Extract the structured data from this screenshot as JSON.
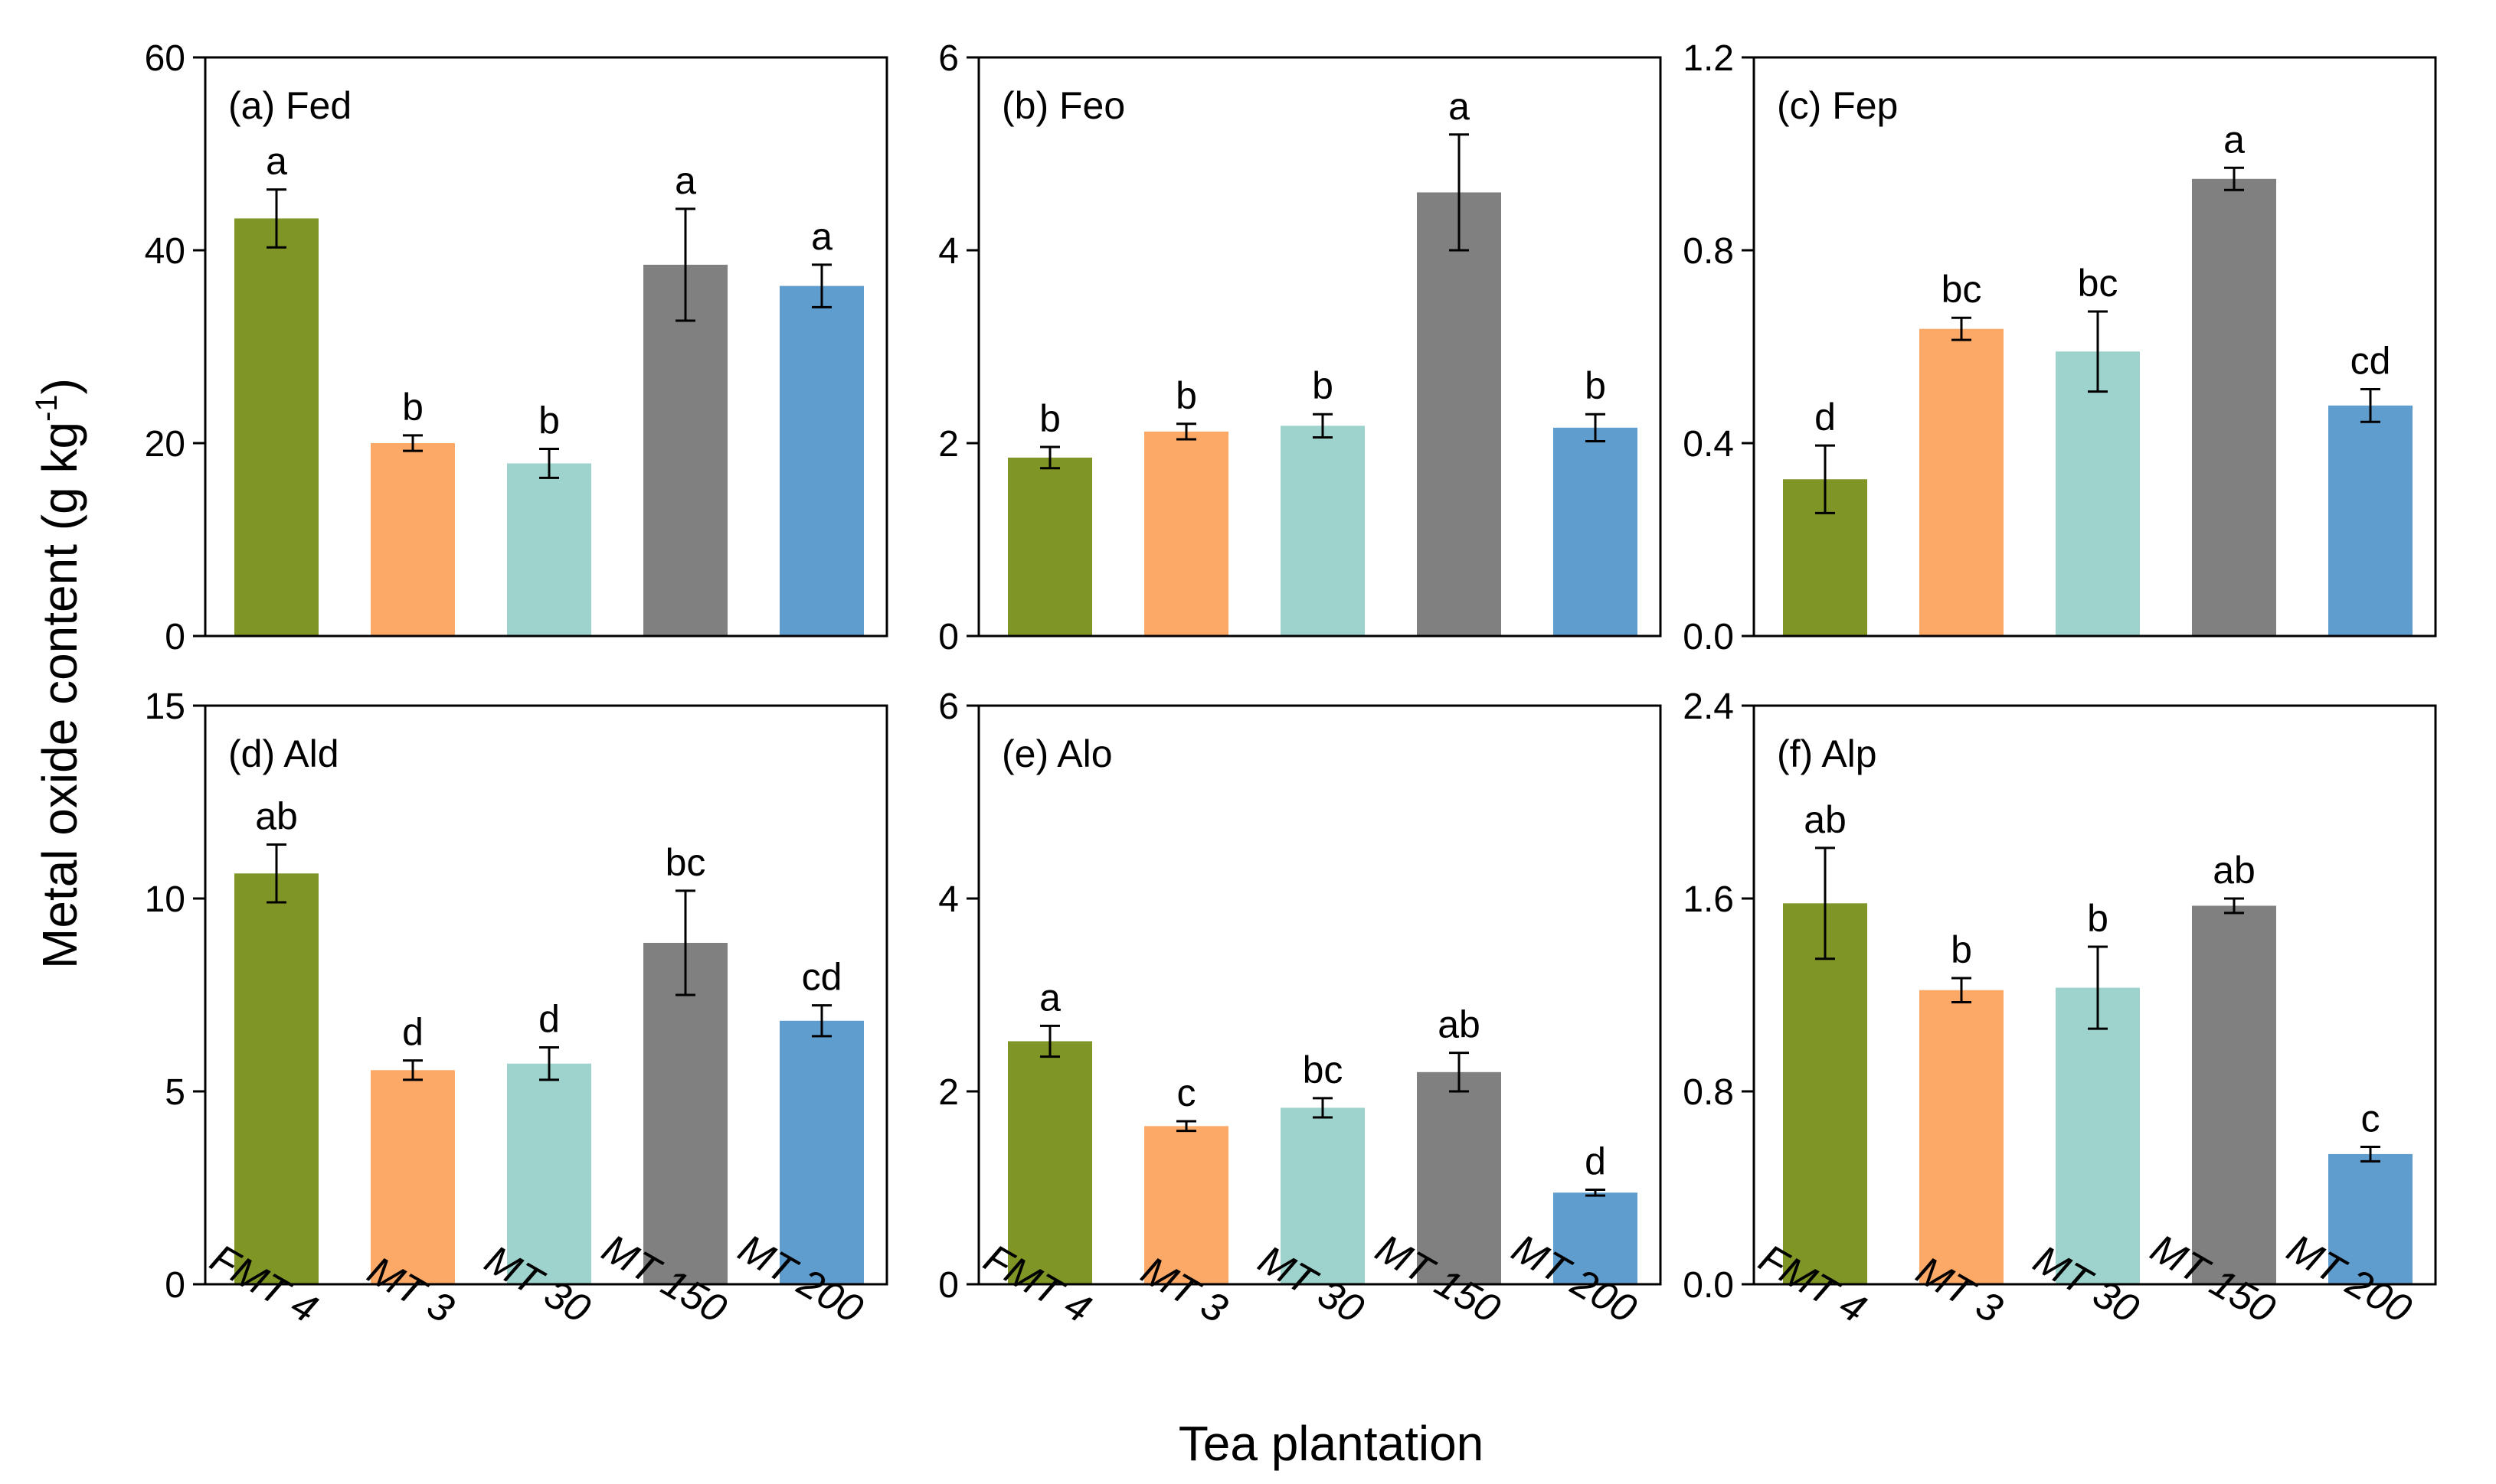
{
  "figure": {
    "ylabel": "Metal oxide content (g kg",
    "ylabel_sup": "-1",
    "ylabel_close": ")",
    "xlabel": "Tea  plantation"
  },
  "chart_data": [
    {
      "type": "bar",
      "title": "(a) Fed",
      "categories": [
        "FMT 4",
        "MT 3",
        "MT 30",
        "MT 150",
        "MT 200"
      ],
      "values": [
        43.3,
        20.0,
        17.9,
        38.5,
        36.3
      ],
      "errors": [
        3.0,
        0.8,
        1.5,
        5.8,
        2.2
      ],
      "letters": [
        "a",
        "b",
        "b",
        "a",
        "a"
      ],
      "colors": [
        "#7f9626",
        "#fca866",
        "#9dd3cc",
        "#808080",
        "#5f9dcf"
      ],
      "ylim": [
        0,
        60
      ],
      "yticks": [
        "0",
        "20",
        "40",
        "60"
      ],
      "ytick_values": [
        0,
        20,
        40,
        60
      ]
    },
    {
      "type": "bar",
      "title": "(b) Feo",
      "categories": [
        "FMT 4",
        "MT 3",
        "MT 30",
        "MT 150",
        "MT 200"
      ],
      "values": [
        1.85,
        2.12,
        2.18,
        4.6,
        2.16
      ],
      "errors": [
        0.11,
        0.08,
        0.12,
        0.6,
        0.14
      ],
      "letters": [
        "b",
        "b",
        "b",
        "a",
        "b"
      ],
      "colors": [
        "#7f9626",
        "#fca866",
        "#9dd3cc",
        "#808080",
        "#5f9dcf"
      ],
      "ylim": [
        0,
        6
      ],
      "yticks": [
        "0",
        "2",
        "4",
        "6"
      ],
      "ytick_values": [
        0,
        2,
        4,
        6
      ]
    },
    {
      "type": "bar",
      "title": "(c) Fep",
      "categories": [
        "FMT 4",
        "MT 3",
        "MT 30",
        "MT 150",
        "MT 200"
      ],
      "values": [
        0.325,
        0.637,
        0.59,
        0.948,
        0.478
      ],
      "errors": [
        0.07,
        0.023,
        0.083,
        0.023,
        0.034
      ],
      "letters": [
        "d",
        "bc",
        "bc",
        "a",
        "cd"
      ],
      "colors": [
        "#7f9626",
        "#fca866",
        "#9dd3cc",
        "#808080",
        "#5f9dcf"
      ],
      "ylim": [
        0,
        1.2
      ],
      "yticks": [
        "0.0",
        "0.4",
        "0.8",
        "1.2"
      ],
      "ytick_values": [
        0,
        0.4,
        0.8,
        1.2
      ]
    },
    {
      "type": "bar",
      "title": "(d) Ald",
      "categories": [
        "FMT 4",
        "MT 3",
        "MT 30",
        "MT 150",
        "MT 200"
      ],
      "values": [
        10.65,
        5.55,
        5.72,
        8.85,
        6.83
      ],
      "errors": [
        0.75,
        0.25,
        0.42,
        1.35,
        0.4
      ],
      "letters": [
        "ab",
        "d",
        "d",
        "bc",
        "cd"
      ],
      "colors": [
        "#7f9626",
        "#fca866",
        "#9dd3cc",
        "#808080",
        "#5f9dcf"
      ],
      "ylim": [
        0,
        15
      ],
      "yticks": [
        "0",
        "5",
        "10",
        "15"
      ],
      "ytick_values": [
        0,
        5,
        10,
        15
      ]
    },
    {
      "type": "bar",
      "title": "(e) Alo",
      "categories": [
        "FMT 4",
        "MT 3",
        "MT 30",
        "MT 150",
        "MT 200"
      ],
      "values": [
        2.52,
        1.64,
        1.83,
        2.2,
        0.95
      ],
      "errors": [
        0.16,
        0.05,
        0.1,
        0.2,
        0.03
      ],
      "letters": [
        "a",
        "c",
        "bc",
        "ab",
        "d"
      ],
      "colors": [
        "#7f9626",
        "#fca866",
        "#9dd3cc",
        "#808080",
        "#5f9dcf"
      ],
      "ylim": [
        0,
        6
      ],
      "yticks": [
        "0",
        "2",
        "4",
        "6"
      ],
      "ytick_values": [
        0,
        2,
        4,
        6
      ]
    },
    {
      "type": "bar",
      "title": "(f) Alp",
      "categories": [
        "FMT 4",
        "MT 3",
        "MT 30",
        "MT 150",
        "MT 200"
      ],
      "values": [
        1.58,
        1.22,
        1.23,
        1.57,
        0.54
      ],
      "errors": [
        0.23,
        0.05,
        0.17,
        0.03,
        0.03
      ],
      "letters": [
        "ab",
        "b",
        "b",
        "ab",
        "c"
      ],
      "colors": [
        "#7f9626",
        "#fca866",
        "#9dd3cc",
        "#808080",
        "#5f9dcf"
      ],
      "ylim": [
        0,
        2.4
      ],
      "yticks": [
        "0.0",
        "0.8",
        "1.6",
        "2.4"
      ],
      "ytick_values": [
        0,
        0.8,
        1.6,
        2.4
      ]
    }
  ]
}
